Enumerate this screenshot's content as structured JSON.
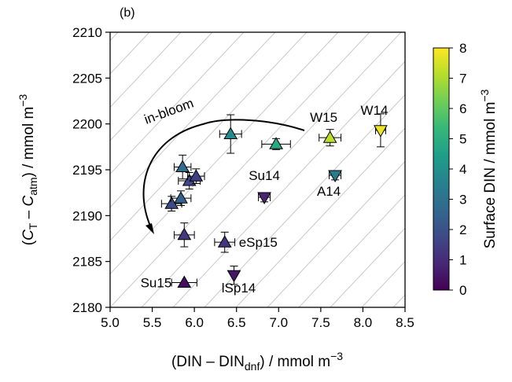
{
  "chart_data": {
    "type": "scatter",
    "panel_label": "(b)",
    "xlabel": {
      "main": "(DIN – DIN",
      "sub": "dnf",
      "tail": ") / mmol m",
      "sup": "−3"
    },
    "ylabel": {
      "open": "(",
      "c1": "C",
      "c1sub": "T",
      "mid": " – ",
      "c2": "C",
      "c2sub": "atm",
      "tail": ") / mmol m",
      "sup": "−3"
    },
    "xlim": [
      5.0,
      8.5
    ],
    "ylim": [
      2180,
      2210
    ],
    "xticks": [
      "5.0",
      "5.5",
      "6.0",
      "6.5",
      "7.0",
      "7.5",
      "8.0",
      "8.5"
    ],
    "yticks": [
      "2180",
      "2185",
      "2190",
      "2195",
      "2200",
      "2205",
      "2210"
    ],
    "grid": "diagonal-reference-lines",
    "colorbar": {
      "label": {
        "main": "Surface DIN / mmol m",
        "sup": "−3"
      },
      "range": [
        0,
        8
      ],
      "ticks": [
        "0",
        "1",
        "2",
        "3",
        "4",
        "5",
        "6",
        "7",
        "8"
      ],
      "colormap": "viridis",
      "stops": [
        "#440154",
        "#482878",
        "#3e4a89",
        "#31688e",
        "#26828e",
        "#1f9e89",
        "#35b779",
        "#6ece58",
        "#b5de2b",
        "#fde725"
      ]
    },
    "annotation_text": "in-bloom",
    "points": [
      {
        "x": 5.88,
        "y": 2182.7,
        "xerr": 0.15,
        "yerr": 0.0,
        "c": 0.3,
        "marker": "up",
        "label": "Su15"
      },
      {
        "x": 6.47,
        "y": 2183.5,
        "xerr": 0.0,
        "yerr": 1.0,
        "c": 0.5,
        "marker": "down",
        "label": "lSp14"
      },
      {
        "x": 6.36,
        "y": 2187.1,
        "xerr": 0.12,
        "yerr": 1.1,
        "c": 1.2,
        "marker": "up",
        "label": "eSp15"
      },
      {
        "x": 5.88,
        "y": 2187.9,
        "xerr": 0.12,
        "yerr": 1.3,
        "c": 1.3,
        "marker": "up",
        "label": ""
      },
      {
        "x": 6.83,
        "y": 2192.0,
        "xerr": 0.07,
        "yerr": 0.5,
        "c": 0.8,
        "marker": "down",
        "label": "Su14"
      },
      {
        "x": 5.73,
        "y": 2191.3,
        "xerr": 0.12,
        "yerr": 0.8,
        "c": 1.8,
        "marker": "up",
        "label": ""
      },
      {
        "x": 5.84,
        "y": 2191.9,
        "xerr": 0.12,
        "yerr": 0.8,
        "c": 2.5,
        "marker": "up",
        "label": ""
      },
      {
        "x": 5.94,
        "y": 2193.8,
        "xerr": 0.13,
        "yerr": 0.9,
        "c": 1.7,
        "marker": "up",
        "label": ""
      },
      {
        "x": 6.02,
        "y": 2194.3,
        "xerr": 0.1,
        "yerr": 0.8,
        "c": 1.5,
        "marker": "up",
        "label": ""
      },
      {
        "x": 5.86,
        "y": 2195.3,
        "xerr": 0.1,
        "yerr": 1.3,
        "c": 2.8,
        "marker": "up",
        "label": ""
      },
      {
        "x": 7.67,
        "y": 2194.4,
        "xerr": 0.07,
        "yerr": 0.5,
        "c": 3.3,
        "marker": "down",
        "label": "A14"
      },
      {
        "x": 6.43,
        "y": 2198.9,
        "xerr": 0.13,
        "yerr": 2.1,
        "c": 3.8,
        "marker": "up",
        "label": ""
      },
      {
        "x": 6.97,
        "y": 2197.8,
        "xerr": 0.17,
        "yerr": 0.6,
        "c": 4.8,
        "marker": "up",
        "label": ""
      },
      {
        "x": 7.61,
        "y": 2198.5,
        "xerr": 0.13,
        "yerr": 0.9,
        "c": 7.2,
        "marker": "up",
        "label": "W15"
      },
      {
        "x": 8.21,
        "y": 2199.3,
        "xerr": 0.06,
        "yerr": 1.8,
        "c": 7.8,
        "marker": "down",
        "label": "W14"
      }
    ]
  }
}
